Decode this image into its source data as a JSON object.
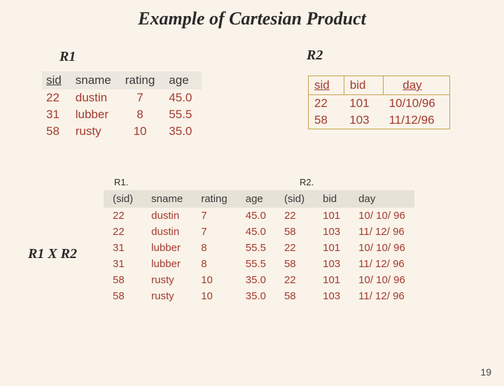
{
  "title": "Example of Cartesian Product",
  "labels": {
    "r1": "R1",
    "r2": "R2",
    "r1xr2": "R1 X R2",
    "sub_r1": "R1.",
    "sub_r2": "R2."
  },
  "r1_table": {
    "columns": [
      "sid",
      "sname",
      "rating",
      "age"
    ],
    "rows": [
      [
        "22",
        "dustin",
        "7",
        "45.0"
      ],
      [
        "31",
        "lubber",
        "8",
        "55.5"
      ],
      [
        "58",
        "rusty",
        "10",
        "35.0"
      ]
    ]
  },
  "r2_table": {
    "columns": [
      "sid",
      "bid",
      "day"
    ],
    "rows": [
      [
        "22",
        "101",
        "10/10/96"
      ],
      [
        "58",
        "103",
        "11/12/96"
      ]
    ]
  },
  "product_table": {
    "columns": [
      "(sid)",
      "sname",
      "rating",
      "age",
      "(sid)",
      "bid",
      "day"
    ],
    "rows": [
      [
        "22",
        "dustin",
        "7",
        "45.0",
        "22",
        "101",
        "10/ 10/ 96"
      ],
      [
        "22",
        "dustin",
        "7",
        "45.0",
        "58",
        "103",
        "11/ 12/ 96"
      ],
      [
        "31",
        "lubber",
        "8",
        "55.5",
        "22",
        "101",
        "10/ 10/ 96"
      ],
      [
        "31",
        "lubber",
        "8",
        "55.5",
        "58",
        "103",
        "11/ 12/ 96"
      ],
      [
        "58",
        "rusty",
        "10",
        "35.0",
        "22",
        "101",
        "10/ 10/ 96"
      ],
      [
        "58",
        "rusty",
        "10",
        "35.0",
        "58",
        "103",
        "11/ 12/ 96"
      ]
    ]
  },
  "page_number": "19",
  "colors": {
    "background": "#faf3e9",
    "header_bg": "#e6e2d8",
    "data_text": "#a23a2f",
    "border": "#c9a24a"
  }
}
